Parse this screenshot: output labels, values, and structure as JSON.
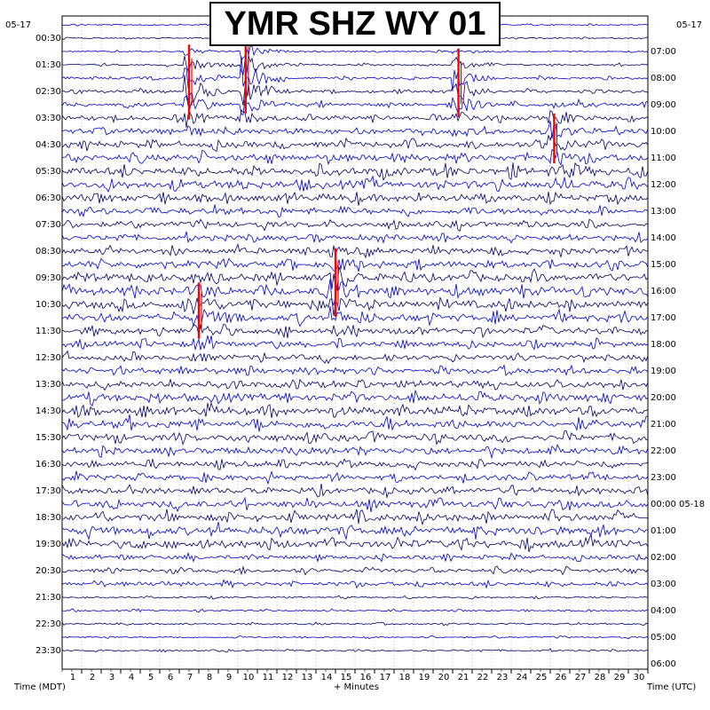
{
  "title": "YMR SHZ WY 01",
  "colors": {
    "trace_a": "#0000cc",
    "trace_b": "#000066",
    "pick": "#ff0000",
    "grid": "#0000ff"
  },
  "date_left": "05-17",
  "date_right": "05-17",
  "left_axis_label": "Time (MDT)",
  "right_axis_label": "Time (UTC)",
  "x_axis_label": "+ Minutes",
  "chart_data": {
    "type": "helicorder",
    "title": "YMR SHZ WY 01",
    "xlabel": "+ Minutes",
    "xlim": [
      0,
      30
    ],
    "x_ticks": [
      1,
      2,
      3,
      4,
      5,
      6,
      7,
      8,
      9,
      10,
      11,
      12,
      13,
      14,
      15,
      16,
      17,
      18,
      19,
      20,
      21,
      22,
      23,
      24,
      25,
      26,
      27,
      28,
      29,
      30
    ],
    "x_tick_labels": [
      "1",
      "2",
      "3",
      "4",
      "5",
      "6",
      "7",
      "8",
      "9",
      "10",
      "11",
      "12",
      "13",
      "14",
      "15",
      "16",
      "17",
      "18",
      "19",
      "20",
      "21",
      "22",
      "23",
      "24",
      "25",
      "26",
      "27",
      "28",
      "29",
      "30"
    ],
    "rows": 48,
    "minutes_per_row": 30,
    "left_labels": [
      "00:30",
      "01:30",
      "02:30",
      "03:30",
      "04:30",
      "05:30",
      "06:30",
      "07:30",
      "08:30",
      "09:30",
      "10:30",
      "11:30",
      "12:30",
      "13:30",
      "14:30",
      "15:30",
      "16:30",
      "17:30",
      "18:30",
      "19:30",
      "20:30",
      "21:30",
      "22:30",
      "23:30"
    ],
    "right_labels": [
      "07:00",
      "08:00",
      "09:00",
      "10:00",
      "11:00",
      "12:00",
      "13:00",
      "14:00",
      "15:00",
      "16:00",
      "17:00",
      "18:00",
      "19:00",
      "20:00",
      "21:00",
      "22:00",
      "23:00",
      "00:00 05-18",
      "01:00",
      "02:00",
      "03:00",
      "04:00",
      "05:00",
      "06:00"
    ],
    "events": [
      {
        "row": 5,
        "minute": 6.5,
        "amplitude": 2.4
      },
      {
        "row": 4,
        "minute": 9.4,
        "amplitude": 3.0
      },
      {
        "row": 5,
        "minute": 20.3,
        "amplitude": 2.2
      },
      {
        "row": 9,
        "minute": 25.2,
        "amplitude": 1.6
      },
      {
        "row": 20,
        "minute": 14.0,
        "amplitude": 2.2
      },
      {
        "row": 22,
        "minute": 7.0,
        "amplitude": 1.8
      }
    ],
    "noise_profile": "low 00:00-06:00, high 07:30-20:30, low 21:00-23:59"
  }
}
